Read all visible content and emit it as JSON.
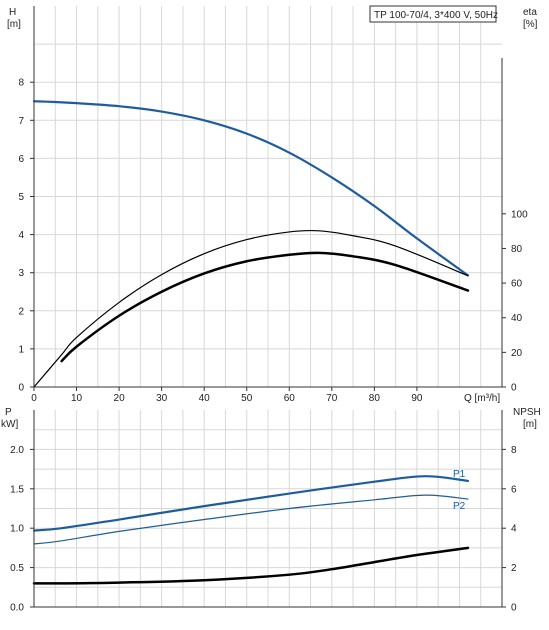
{
  "legend": {
    "label": "TP 100-70/4, 3*400 V, 50Hz"
  },
  "colors": {
    "blue": "#1f5c9e",
    "black": "#000000",
    "grid": "#d8d8d8"
  },
  "chart_data": [
    {
      "type": "line",
      "title": "",
      "xlabel": "Q [m³/h]",
      "ylabel_left": [
        "H",
        "[m]"
      ],
      "ylabel_right": [
        "eta",
        "[%]"
      ],
      "xlim": [
        0,
        110
      ],
      "ylim_left": [
        0,
        10
      ],
      "ylim_right": [
        0,
        220
      ],
      "x_ticks": [
        "0",
        "10",
        "20",
        "30",
        "40",
        "50",
        "60",
        "70",
        "80",
        "90"
      ],
      "y_left_ticks": [
        "0",
        "1",
        "2",
        "3",
        "4",
        "5",
        "6",
        "7",
        "8"
      ],
      "y_right_ticks": [
        "0",
        "20",
        "40",
        "60",
        "80",
        "100"
      ],
      "grid": true,
      "series": [
        {
          "axis": "left",
          "color": "#1f5c9e",
          "width": 2.2,
          "x": [
            0,
            5,
            10,
            20,
            30,
            40,
            50,
            60,
            70,
            80,
            90,
            102
          ],
          "y": [
            7.5,
            7.48,
            7.45,
            7.37,
            7.23,
            7.0,
            6.65,
            6.15,
            5.5,
            4.75,
            3.9,
            2.93
          ]
        },
        {
          "axis": "left",
          "color": "#000000",
          "width": 1.2,
          "x": [
            0,
            6.5,
            10,
            20,
            30,
            40,
            50,
            60,
            67,
            75,
            85,
            102
          ],
          "y": [
            0.0,
            0.85,
            1.3,
            2.22,
            2.95,
            3.5,
            3.87,
            4.07,
            4.1,
            3.97,
            3.7,
            2.92
          ]
        },
        {
          "axis": "left",
          "color": "#000000",
          "width": 2.5,
          "x": [
            6.5,
            10,
            20,
            30,
            40,
            50,
            60,
            67,
            75,
            85,
            102
          ],
          "y": [
            0.68,
            1.06,
            1.87,
            2.5,
            2.98,
            3.3,
            3.47,
            3.52,
            3.43,
            3.2,
            2.53
          ]
        }
      ]
    },
    {
      "type": "line",
      "title": "",
      "xlabel": "",
      "ylabel_left": [
        "P",
        "kW]"
      ],
      "ylabel_right": [
        "NPSH",
        "[m]"
      ],
      "xlim": [
        0,
        110
      ],
      "ylim_left": [
        0,
        2.5
      ],
      "ylim_right": [
        0,
        10
      ],
      "y_left_ticks": [
        "0.0",
        "0.5",
        "1.0",
        "1.5",
        "2.0"
      ],
      "y_right_ticks": [
        "0",
        "2",
        "4",
        "6",
        "8"
      ],
      "grid": true,
      "series": [
        {
          "name": "P1",
          "axis": "left",
          "color": "#1f5c9e",
          "width": 2.2,
          "x": [
            0,
            6.5,
            20,
            40,
            60,
            80,
            92,
            102
          ],
          "y": [
            0.97,
            1.0,
            1.11,
            1.28,
            1.44,
            1.59,
            1.66,
            1.6
          ]
        },
        {
          "name": "P2",
          "axis": "left",
          "color": "#1f5c9e",
          "width": 1.2,
          "x": [
            0,
            6.5,
            20,
            40,
            60,
            80,
            92,
            102
          ],
          "y": [
            0.8,
            0.84,
            0.96,
            1.11,
            1.25,
            1.36,
            1.42,
            1.37
          ]
        },
        {
          "axis": "left",
          "color": "#000000",
          "width": 2.5,
          "x": [
            0,
            6.5,
            20,
            40,
            60,
            70,
            80,
            90,
            102
          ],
          "y": [
            0.3,
            0.3,
            0.31,
            0.34,
            0.41,
            0.48,
            0.57,
            0.66,
            0.75
          ]
        }
      ]
    }
  ]
}
